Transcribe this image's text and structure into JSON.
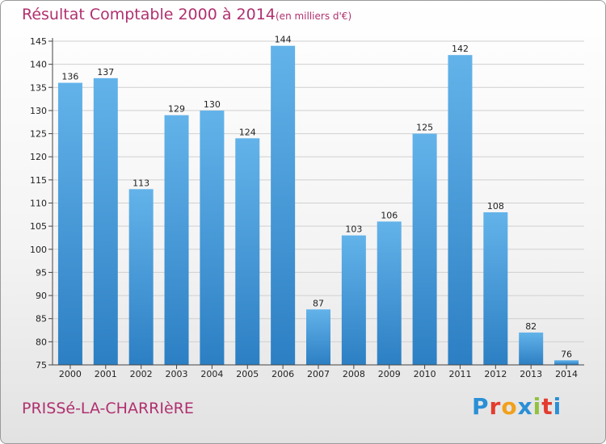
{
  "title": "Résultat Comptable 2000 à 2014",
  "subtitle": "(en milliers d'€)",
  "place_name": "PRISSé-LA-CHARRIèRE",
  "logo": {
    "text": "Proxiti",
    "letters": [
      "P",
      "r",
      "o",
      "x",
      "i",
      "t",
      "i"
    ]
  },
  "colors": {
    "bar_top": "#63b3ea",
    "bar_bottom": "#2c7fc3",
    "title": "#b0306f",
    "grid": "#d0d0d0"
  },
  "chart_data": {
    "type": "bar",
    "title": "Résultat Comptable 2000 à 2014",
    "categories": [
      "2000",
      "2001",
      "2002",
      "2003",
      "2004",
      "2005",
      "2006",
      "2007",
      "2008",
      "2009",
      "2010",
      "2011",
      "2012",
      "2013",
      "2014"
    ],
    "values": [
      136,
      137,
      113,
      129,
      130,
      124,
      144,
      87,
      103,
      106,
      125,
      142,
      108,
      82,
      76
    ],
    "ylim": [
      75,
      145
    ],
    "yticks": [
      75,
      80,
      85,
      90,
      95,
      100,
      105,
      110,
      115,
      120,
      125,
      130,
      135,
      140,
      145
    ],
    "xlabel": "",
    "ylabel": "",
    "grid": true,
    "data_labels": true
  }
}
